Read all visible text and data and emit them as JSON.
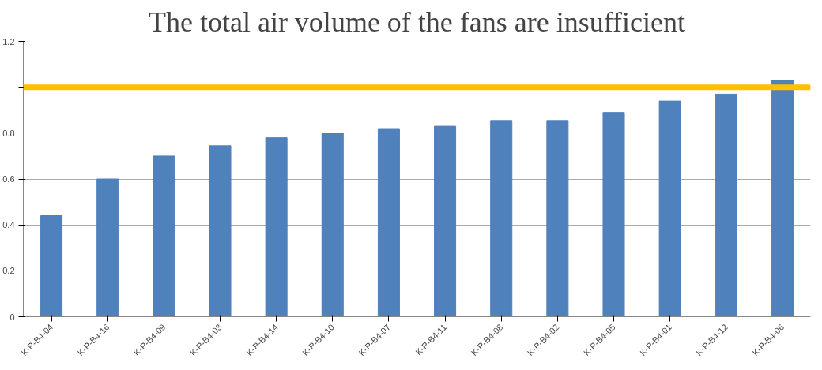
{
  "chart_data": {
    "type": "bar",
    "title": "The total air volume of the fans are insufficient",
    "categories": [
      "K-P-B4-04",
      "K-P-B4-16",
      "K-P-B4-09",
      "K-P-B4-03",
      "K-P-B4-14",
      "K-P-B4-10",
      "K-P-B4-07",
      "K-P-B4-11",
      "K-P-B4-08",
      "K-P-B4-02",
      "K-P-B4-05",
      "K-P-B4-01",
      "K-P-B4-12",
      "K-P-B4-06"
    ],
    "values": [
      0.44,
      0.6,
      0.7,
      0.745,
      0.78,
      0.8,
      0.82,
      0.83,
      0.855,
      0.855,
      0.89,
      0.94,
      0.97,
      1.03
    ],
    "color": "#4f81bd",
    "ylim": [
      0,
      1.2
    ],
    "yticks": [
      0,
      0.2,
      0.4,
      0.6,
      0.8,
      {
        "value": 1,
        "label": null
      },
      1.2
    ],
    "grid": "y",
    "ref_lines": [
      {
        "axis": "y",
        "value": 1,
        "color": "#ffc000"
      }
    ]
  }
}
